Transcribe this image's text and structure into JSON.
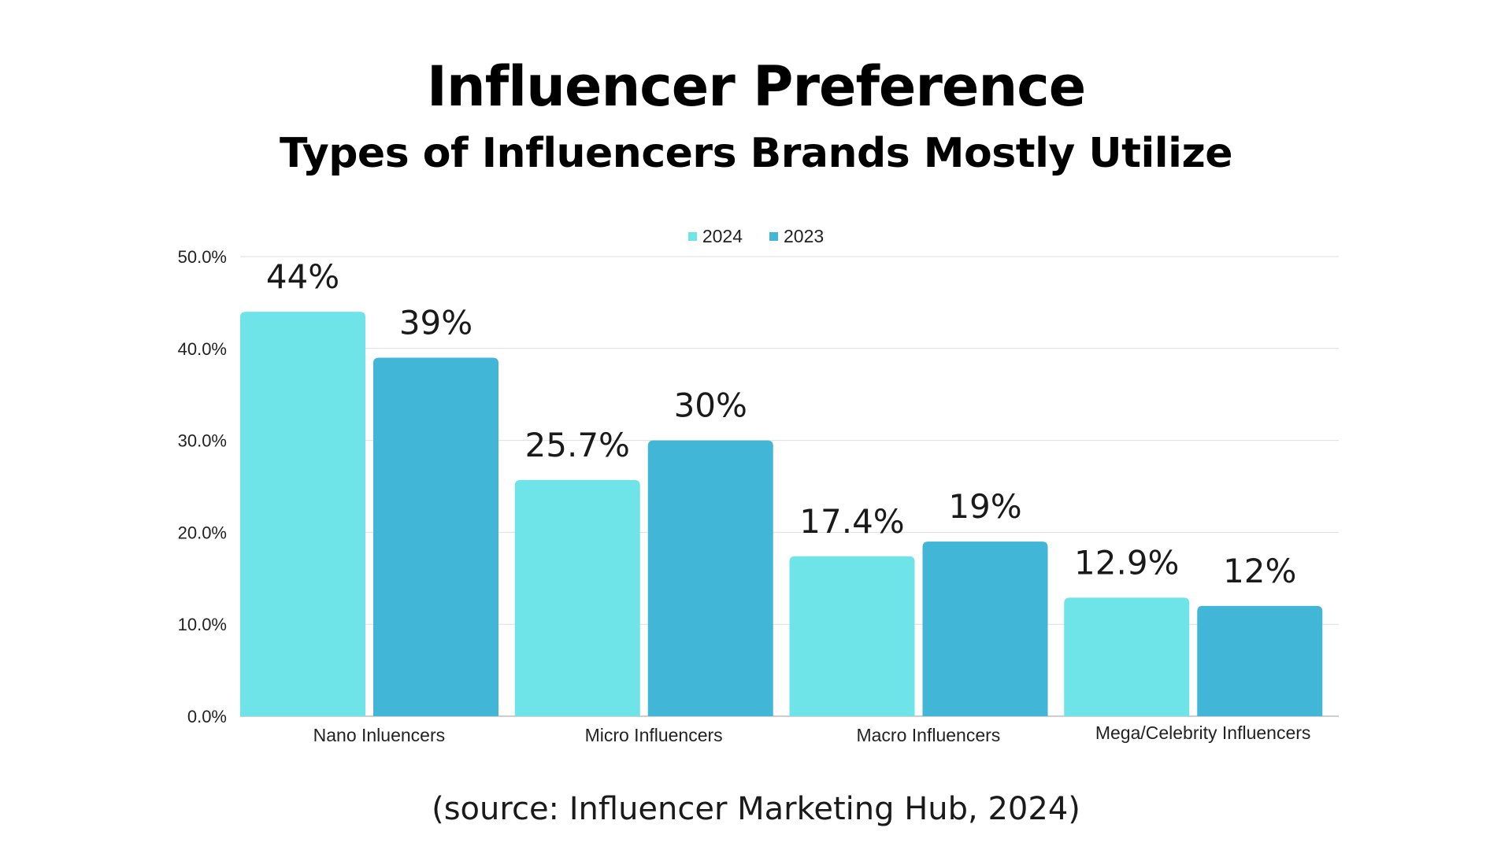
{
  "header": {
    "title": "Influencer Preference",
    "subtitle": "Types of Influencers Brands Mostly Utilize"
  },
  "footer": {
    "source": "(source: Influencer Marketing Hub, 2024)"
  },
  "chart_data": {
    "type": "bar",
    "title": "Influencer Preference",
    "subtitle": "Types of Influencers Brands Mostly Utilize",
    "xlabel": "",
    "ylabel": "",
    "categories": [
      "Nano Inluencers",
      "Micro Influencers",
      "Macro Influencers",
      "Mega/Celebrity Influencers"
    ],
    "series": [
      {
        "name": "2024",
        "color": "#6ee4e8",
        "values": [
          44,
          25.7,
          17.4,
          12.9
        ],
        "labels": [
          "44%",
          "25.7%",
          "17.4%",
          "12.9%"
        ]
      },
      {
        "name": "2023",
        "color": "#42b6d6",
        "values": [
          39,
          30,
          19,
          12
        ],
        "labels": [
          "39%",
          "30%",
          "19%",
          "12%"
        ]
      }
    ],
    "ylim": [
      0,
      50
    ],
    "yticks": [
      "0.0%",
      "10.0%",
      "20.0%",
      "30.0%",
      "40.0%",
      "50.0%"
    ],
    "grid": true,
    "legend_position": "top-center"
  }
}
